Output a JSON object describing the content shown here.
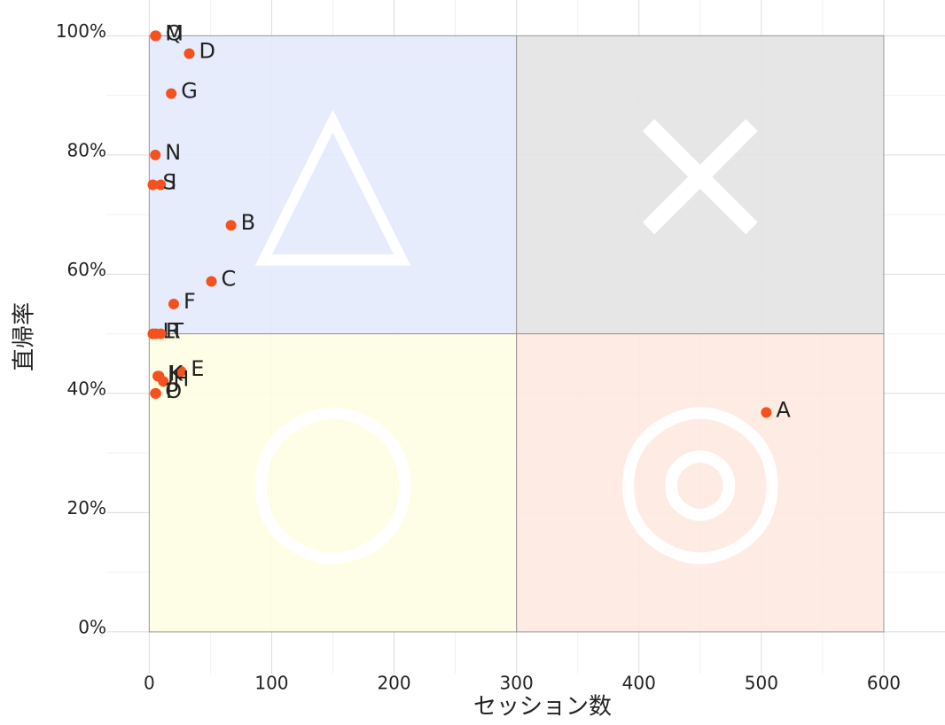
{
  "chart_data": {
    "type": "scatter",
    "x_label": "セッション数",
    "y_label": "直帰率",
    "xlim": [
      -35,
      650
    ],
    "ylim": [
      -7,
      106
    ],
    "xticks": [
      0,
      100,
      200,
      300,
      400,
      500,
      600
    ],
    "yticks": [
      {
        "value": 0,
        "label": "0%"
      },
      {
        "value": 20,
        "label": "20%"
      },
      {
        "value": 40,
        "label": "40%"
      },
      {
        "value": 60,
        "label": "60%"
      },
      {
        "value": 80,
        "label": "80%"
      },
      {
        "value": 100,
        "label": "100%"
      }
    ],
    "grid": true,
    "color": "#f4511e",
    "quadrants": [
      {
        "x": [
          0,
          300
        ],
        "y": [
          50,
          100
        ],
        "color": "#e3eafc",
        "label": "△"
      },
      {
        "x": [
          300,
          600
        ],
        "y": [
          50,
          100
        ],
        "color": "#e3e3e3",
        "label": "×"
      },
      {
        "x": [
          0,
          300
        ],
        "y": [
          0,
          50
        ],
        "color": "#fefee3",
        "label": "○"
      },
      {
        "x": [
          300,
          600
        ],
        "y": [
          0,
          50
        ],
        "color": "#fde9e1",
        "label": "◎"
      }
    ],
    "labels": [
      "A",
      "B",
      "C",
      "D",
      "E",
      "F",
      "G",
      "H",
      "I",
      "J",
      "K",
      "L",
      "M",
      "N",
      "O",
      "P",
      "Q",
      "R",
      "S",
      "T"
    ],
    "x": [
      504,
      66.8,
      50.8,
      32.7,
      26,
      20,
      18,
      11.6,
      9.4,
      7,
      8,
      3,
      5,
      5,
      5,
      5.5,
      5.5,
      5.5,
      3,
      9.4
    ],
    "values": [
      36.8,
      68.2,
      58.8,
      97,
      43.7,
      55,
      90.3,
      42,
      75,
      42.9,
      42.9,
      50,
      100,
      80,
      40,
      40,
      100,
      50,
      75,
      50
    ]
  }
}
